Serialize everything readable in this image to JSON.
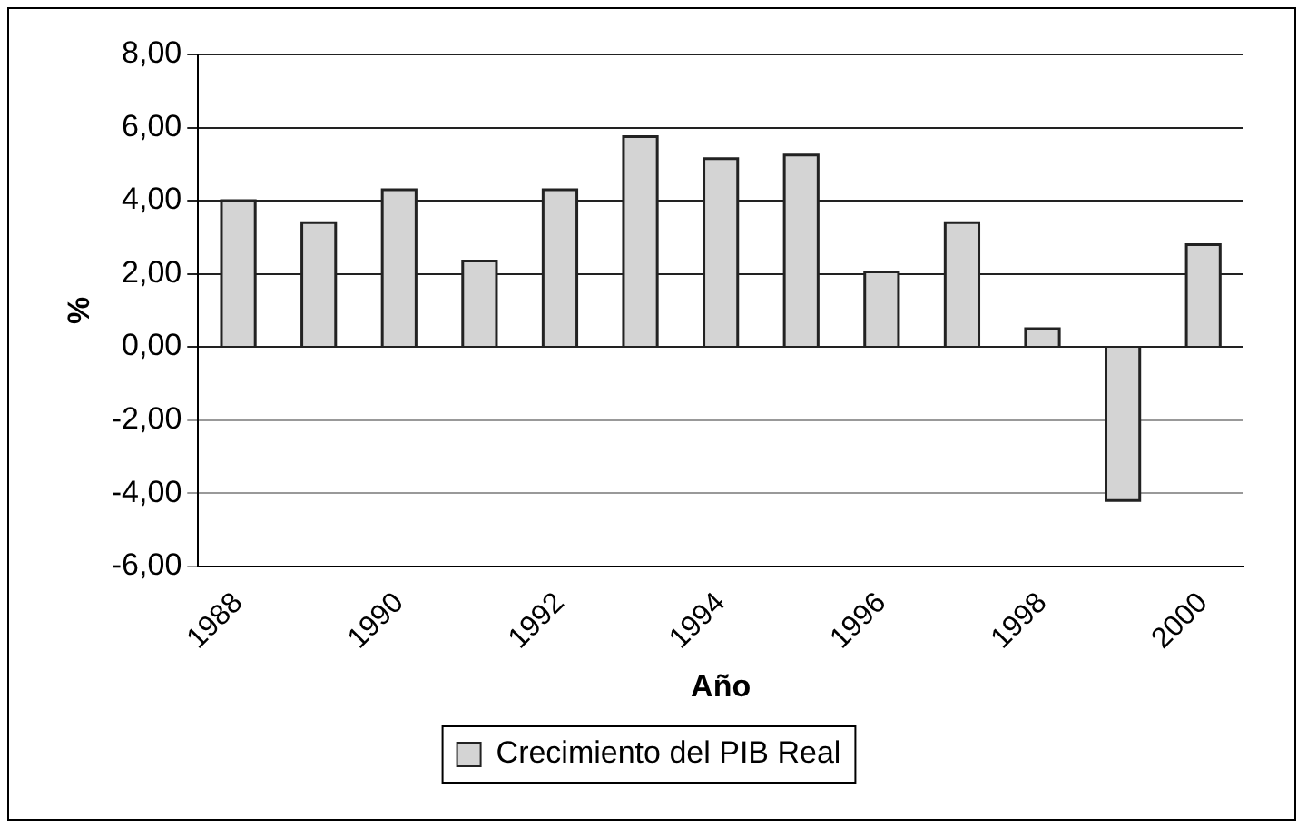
{
  "chart_data": {
    "type": "bar",
    "xlabel": "Año",
    "ylabel": "%",
    "categories": [
      "1988",
      null,
      "1990",
      null,
      "1992",
      null,
      "1994",
      null,
      "1996",
      null,
      "1998",
      null,
      "2000"
    ],
    "series": [
      {
        "name": "Crecimiento del PIB Real",
        "color": "#d4d4d4",
        "values": [
          4.0,
          3.4,
          4.3,
          2.35,
          4.3,
          5.75,
          5.15,
          5.25,
          2.05,
          3.4,
          0.5,
          -4.2,
          2.8
        ]
      }
    ],
    "ylim": [
      -6,
      8
    ],
    "yticks": [
      {
        "value": -6,
        "label": "-6,00"
      },
      {
        "value": -4,
        "label": "-4,00"
      },
      {
        "value": -2,
        "label": "-2,00"
      },
      {
        "value": 0,
        "label": "0,00"
      },
      {
        "value": 2,
        "label": "2,00"
      },
      {
        "value": 4,
        "label": "4,00"
      },
      {
        "value": 6,
        "label": "6,00"
      },
      {
        "value": 8,
        "label": "8,00"
      }
    ],
    "grid": "y",
    "legend": "bottom"
  }
}
